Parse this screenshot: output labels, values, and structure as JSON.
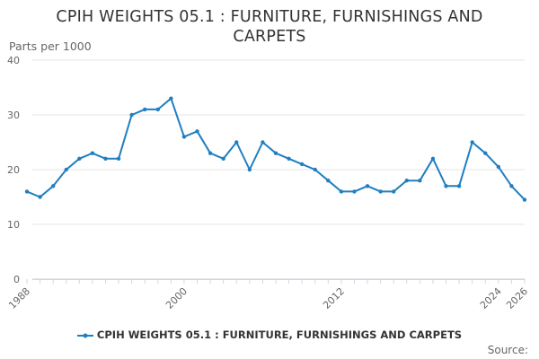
{
  "chart_data": {
    "type": "line",
    "title": "CPIH WEIGHTS 05.1 : FURNITURE, FURNISHINGS AND CARPETS",
    "ylabel": "Parts per 1000",
    "xlabel": "",
    "ylim": [
      0,
      40
    ],
    "yticks": [
      0,
      10,
      20,
      30,
      40
    ],
    "xlim": [
      1988,
      2026
    ],
    "xticks": [
      1988,
      2000,
      2012,
      2024,
      2026
    ],
    "grid": "horizontal",
    "legend_position": "bottom",
    "series": [
      {
        "name": "CPIH WEIGHTS 05.1 : FURNITURE, FURNISHINGS AND CARPETS",
        "color": "#1f7fc1",
        "x": [
          1988,
          1989,
          1990,
          1991,
          1992,
          1993,
          1994,
          1995,
          1996,
          1997,
          1998,
          1999,
          2000,
          2001,
          2002,
          2003,
          2004,
          2005,
          2006,
          2007,
          2008,
          2009,
          2010,
          2011,
          2012,
          2013,
          2014,
          2015,
          2016,
          2017,
          2018,
          2019,
          2020,
          2021,
          2022,
          2023,
          2024,
          2025,
          2026
        ],
        "values": [
          16,
          15,
          17,
          20,
          22,
          23,
          22,
          22,
          30,
          31,
          31,
          33,
          26,
          27,
          23,
          22,
          25,
          20,
          25,
          23,
          22,
          21,
          20,
          18,
          16,
          16,
          17,
          16,
          16,
          18,
          18,
          22,
          17,
          17,
          25,
          23,
          20.5,
          17,
          14.5
        ]
      }
    ]
  },
  "legend": {
    "label": "CPIH WEIGHTS 05.1 : FURNITURE, FURNISHINGS AND CARPETS"
  },
  "source_label": "Source:"
}
